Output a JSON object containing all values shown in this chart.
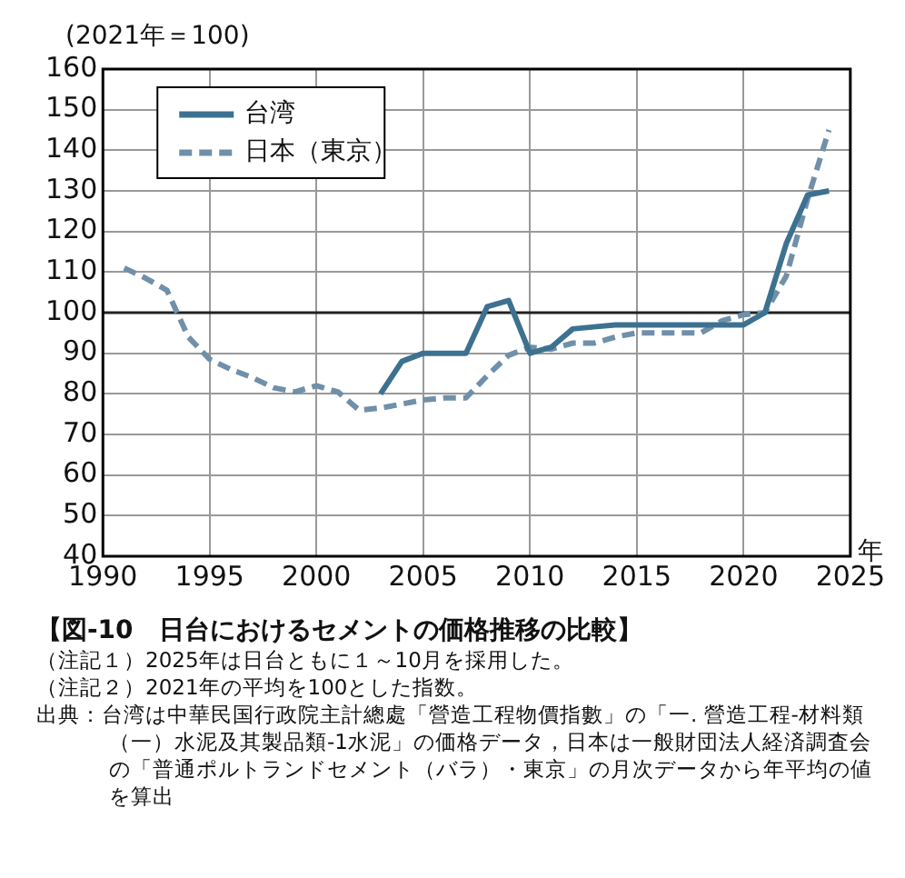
{
  "chart_data": {
    "type": "line",
    "title": "【図-10　日台におけるセメントの価格推移の比較】",
    "ylabel": "(2021年＝100)",
    "xlabel": "年",
    "xlim": [
      1990,
      2025
    ],
    "xticks": [
      1990,
      1995,
      2000,
      2005,
      2010,
      2015,
      2020,
      2025
    ],
    "ylim": [
      40,
      160
    ],
    "yticks": [
      40,
      50,
      60,
      70,
      80,
      90,
      100,
      110,
      120,
      130,
      140,
      150,
      160
    ],
    "grid": true,
    "legend": "top left",
    "marker": "none",
    "ref_lines": [
      {
        "axis": "y",
        "value": 100,
        "color": "#222222"
      }
    ],
    "series": [
      {
        "name": "台湾",
        "color": "#3d7190",
        "line_style": "solid",
        "x": [
          2003,
          2004,
          2005,
          2006,
          2007,
          2008,
          2009,
          2010,
          2011,
          2012,
          2013,
          2014,
          2015,
          2016,
          2017,
          2018,
          2019,
          2020,
          2021,
          2022,
          2023,
          2024
        ],
        "values": [
          80,
          88,
          90,
          90,
          90,
          101.5,
          103,
          90,
          91.5,
          96,
          96.5,
          97,
          97,
          97,
          97,
          97,
          97,
          97,
          100,
          117,
          129,
          130
        ]
      },
      {
        "name": "日本（東京）",
        "color": "#7090aa",
        "line_style": "dashed",
        "x": [
          1991,
          1992,
          1993,
          1994,
          1995,
          1996,
          1997,
          1998,
          1999,
          2000,
          2001,
          2002,
          2003,
          2004,
          2005,
          2006,
          2007,
          2008,
          2009,
          2010,
          2011,
          2012,
          2013,
          2014,
          2015,
          2016,
          2017,
          2018,
          2019,
          2020,
          2021,
          2022,
          2023,
          2024
        ],
        "values": [
          111,
          108.5,
          105.5,
          94,
          88.5,
          86,
          84,
          81.5,
          80.5,
          82,
          80.5,
          76,
          76.5,
          77.5,
          78.5,
          79,
          79,
          84.5,
          89.5,
          91.5,
          91,
          92.5,
          92.5,
          94,
          95,
          95,
          95,
          95,
          98,
          99.5,
          100,
          109,
          128,
          145
        ]
      }
    ],
    "annotations": [
      "（注記１）2025年は日台ともに１～10月を採用した。",
      "（注記２）2021年の平均を100とした指数。",
      "出典：台湾は中華民国行政院主計總處「營造工程物價指數」の「一. 營造工程-材料類（一）水泥及其製品類-1水泥」の価格データ，日本は一般財団法人経済調査会の「普通ポルトランドセメント（バラ）・東京」の月次データから年平均の値を算出"
    ]
  }
}
